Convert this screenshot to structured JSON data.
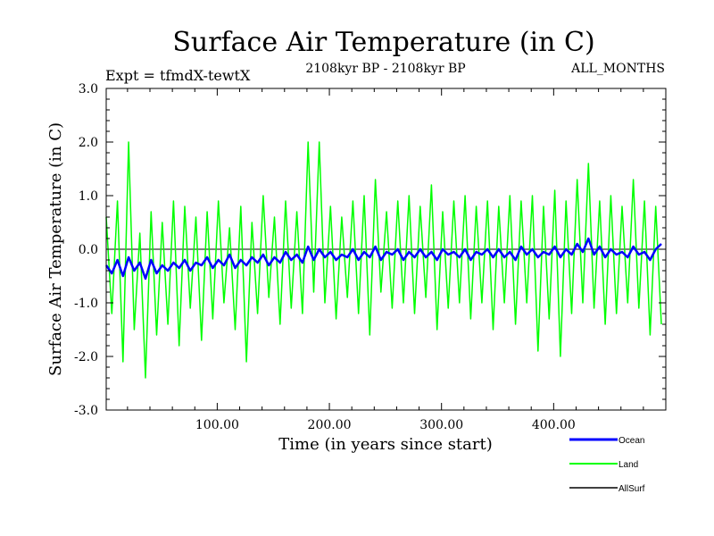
{
  "chart_data": {
    "type": "line",
    "title": "Surface Air Temperature (in C)",
    "subtitle": "2108kyr BP - 2108kyr BP",
    "experiment_label": "Expt = tfmdX-tewtX",
    "months_label": "ALL_MONTHS",
    "xlabel": "Time (in years since start)",
    "ylabel": "Surface Air Temperature (in C)",
    "xlim": [
      1,
      500
    ],
    "ylim": [
      -3.0,
      3.0
    ],
    "x_ticks": [
      100,
      200,
      300,
      400
    ],
    "x_tick_labels": [
      "100.00",
      "200.00",
      "300.00",
      "400.00"
    ],
    "y_ticks": [
      -3,
      -2,
      -1,
      0,
      1,
      2,
      3
    ],
    "y_tick_labels": [
      "-3.0",
      "-2.0",
      "-1.0",
      "0.0",
      "1.0",
      "2.0",
      "3.0"
    ],
    "zero_line": 0.0,
    "legend_position": "bottom-right",
    "series": [
      {
        "name": "Land",
        "color": "#00ff00",
        "x_start": 1,
        "x_step": 5,
        "note": "sampled every 5 years; annual values fluctuate with roughly +/-1.0 C amplitude (extremes about -2.4 to +2.0)",
        "values": [
          0.6,
          -1.2,
          0.9,
          -2.1,
          2.0,
          -1.5,
          0.3,
          -2.4,
          0.7,
          -1.6,
          0.5,
          -1.4,
          0.9,
          -1.8,
          0.8,
          -1.1,
          0.6,
          -1.7,
          0.7,
          -1.3,
          0.9,
          -1.0,
          0.4,
          -1.5,
          0.8,
          -2.1,
          0.5,
          -1.2,
          1.0,
          -0.9,
          0.6,
          -1.4,
          0.9,
          -1.1,
          0.7,
          -1.2,
          2.0,
          -0.8,
          2.0,
          -1.0,
          0.8,
          -1.3,
          0.6,
          -0.9,
          0.9,
          -1.2,
          1.0,
          -1.6,
          1.3,
          -0.8,
          0.7,
          -1.1,
          0.9,
          -1.0,
          1.0,
          -1.2,
          0.8,
          -0.9,
          1.2,
          -1.5,
          0.7,
          -1.1,
          0.9,
          -1.0,
          1.0,
          -1.3,
          0.8,
          -1.0,
          0.9,
          -1.5,
          0.8,
          -1.0,
          1.0,
          -1.4,
          0.9,
          -1.0,
          1.0,
          -1.9,
          0.8,
          -1.3,
          1.1,
          -2.0,
          0.9,
          -1.2,
          1.3,
          -1.0,
          1.6,
          -1.1,
          0.9,
          -1.4,
          1.0,
          -1.2,
          0.8,
          -1.0,
          1.3,
          -1.1,
          0.9,
          -1.6,
          0.8,
          -1.4
        ]
      },
      {
        "name": "Ocean",
        "color": "#0000ff",
        "x_start": 1,
        "x_step": 5,
        "note": "sampled every 5 years; annual values fluctuate roughly +/-0.3 C around a slowly rising mean",
        "values": [
          -0.3,
          -0.45,
          -0.2,
          -0.5,
          -0.15,
          -0.4,
          -0.25,
          -0.55,
          -0.2,
          -0.45,
          -0.3,
          -0.4,
          -0.25,
          -0.35,
          -0.2,
          -0.4,
          -0.25,
          -0.3,
          -0.15,
          -0.35,
          -0.2,
          -0.3,
          -0.1,
          -0.35,
          -0.2,
          -0.3,
          -0.15,
          -0.25,
          -0.1,
          -0.3,
          -0.15,
          -0.25,
          -0.05,
          -0.2,
          -0.1,
          -0.25,
          0.05,
          -0.2,
          0.0,
          -0.15,
          -0.05,
          -0.2,
          -0.1,
          -0.15,
          0.0,
          -0.2,
          -0.05,
          -0.15,
          0.05,
          -0.2,
          -0.05,
          -0.1,
          0.0,
          -0.2,
          -0.05,
          -0.15,
          0.0,
          -0.15,
          -0.05,
          -0.2,
          0.0,
          -0.1,
          -0.05,
          -0.15,
          0.0,
          -0.2,
          -0.05,
          -0.1,
          0.0,
          -0.15,
          0.0,
          -0.15,
          -0.05,
          -0.2,
          0.05,
          -0.1,
          0.0,
          -0.15,
          -0.05,
          -0.1,
          0.05,
          -0.15,
          0.0,
          -0.1,
          0.1,
          -0.05,
          0.2,
          -0.1,
          0.05,
          -0.15,
          0.0,
          -0.1,
          -0.05,
          -0.15,
          0.05,
          -0.1,
          -0.05,
          -0.2,
          0.0,
          0.1
        ]
      },
      {
        "name": "AllSurf",
        "color": "#000000",
        "values": []
      }
    ]
  }
}
